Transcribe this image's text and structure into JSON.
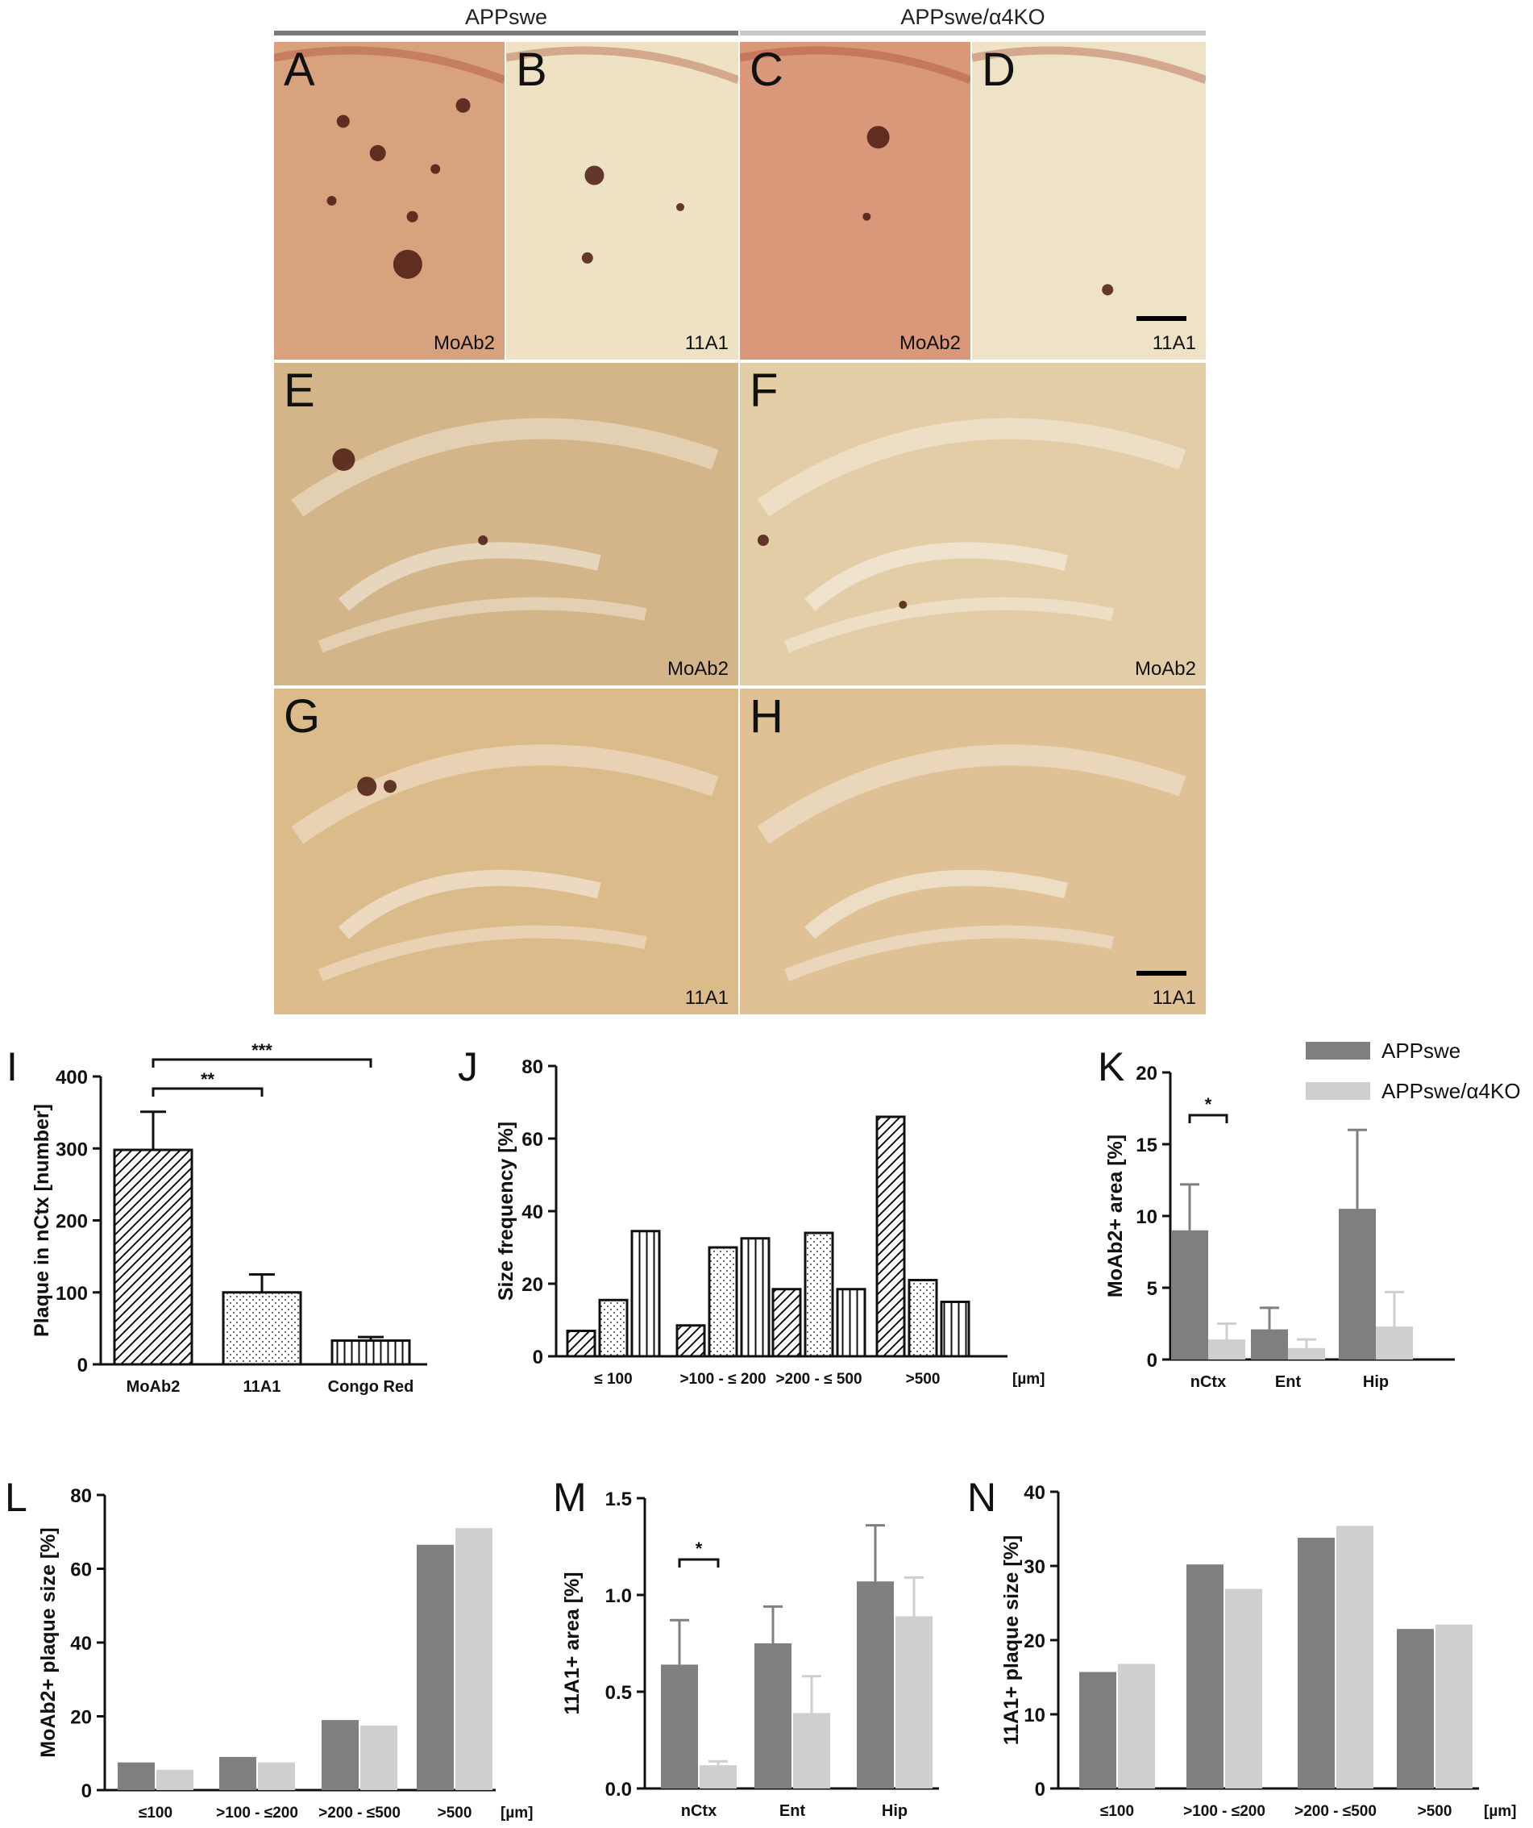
{
  "figure": {
    "groups": [
      {
        "label": "APPswe",
        "color": "#7a7a7a"
      },
      {
        "label": "APPswe/α4KO",
        "color": "#c8c8c8"
      }
    ],
    "panels": [
      {
        "letter": "A",
        "stain": "MoAb2",
        "bg": "#d9a27f"
      },
      {
        "letter": "B",
        "stain": "11A1",
        "bg": "#efe2c4"
      },
      {
        "letter": "C",
        "stain": "MoAb2",
        "bg": "#d9987a"
      },
      {
        "letter": "D",
        "stain": "11A1",
        "bg": "#eee2c7"
      },
      {
        "letter": "E",
        "stain": "MoAb2",
        "bg": "#d4b589"
      },
      {
        "letter": "F",
        "stain": "MoAb2",
        "bg": "#e3cda7"
      },
      {
        "letter": "G",
        "stain": "11A1",
        "bg": "#dcbb8a"
      },
      {
        "letter": "H",
        "stain": "11A1",
        "bg": "#dfc195"
      }
    ]
  },
  "legend": {
    "items": [
      {
        "label": "APPswe",
        "color": "#7f7f7f"
      },
      {
        "label": "APPswe/α4KO",
        "color": "#cfcfcf"
      }
    ]
  },
  "chart_data": [
    {
      "id": "I",
      "letter": "I",
      "type": "bar",
      "ylabel": "Plaque in nCtx [number]",
      "categories": [
        "MoAb2",
        "11A1",
        "Congo Red"
      ],
      "values": [
        298,
        100,
        33
      ],
      "errors": [
        53,
        25,
        5
      ],
      "patterns": [
        "diag",
        "dots",
        "vert"
      ],
      "ylim": [
        0,
        400
      ],
      "yticks": [
        0,
        100,
        200,
        300,
        400
      ],
      "significance": [
        {
          "from": 0,
          "to": 1,
          "label": "**"
        },
        {
          "from": 0,
          "to": 2,
          "label": "***"
        }
      ]
    },
    {
      "id": "J",
      "letter": "J",
      "type": "bar",
      "ylabel": "Size frequency [%]",
      "xunit": "[µm]",
      "categories": [
        "≤ 100",
        ">100 - ≤ 200",
        ">200 - ≤ 500",
        ">500"
      ],
      "series": [
        {
          "pattern": "diag",
          "values": [
            7,
            8.5,
            18.5,
            66
          ]
        },
        {
          "pattern": "dots",
          "values": [
            15.5,
            30,
            34,
            21
          ]
        },
        {
          "pattern": "vert",
          "values": [
            34.5,
            32.5,
            18.5,
            15
          ]
        }
      ],
      "ylim": [
        0,
        80
      ],
      "yticks": [
        0,
        20,
        40,
        60,
        80
      ]
    },
    {
      "id": "K",
      "letter": "K",
      "type": "bar",
      "ylabel": "MoAb2+ area [%]",
      "categories": [
        "nCtx",
        "Ent",
        "Hip"
      ],
      "series": [
        {
          "name": "APPswe",
          "values": [
            9,
            2.1,
            10.5
          ],
          "errors": [
            3.2,
            1.5,
            5.5
          ]
        },
        {
          "name": "APPswe/α4KO",
          "values": [
            1.4,
            0.8,
            2.3
          ],
          "errors": [
            1.1,
            0.6,
            2.4
          ]
        }
      ],
      "ylim": [
        0,
        20
      ],
      "yticks": [
        0,
        5,
        10,
        15,
        20
      ],
      "significance": [
        {
          "category": 0,
          "label": "*"
        }
      ]
    },
    {
      "id": "L",
      "letter": "L",
      "type": "bar",
      "ylabel": "MoAb2+ plaque size [%]",
      "xunit": "[µm]",
      "categories": [
        "≤100",
        ">100 - ≤200",
        ">200 - ≤500",
        ">500"
      ],
      "series": [
        {
          "name": "APPswe",
          "values": [
            7.5,
            9,
            19,
            66.5
          ]
        },
        {
          "name": "APPswe/α4KO",
          "values": [
            5.5,
            7.5,
            17.5,
            71
          ]
        }
      ],
      "ylim": [
        0,
        80
      ],
      "yticks": [
        0,
        20,
        40,
        60,
        80
      ]
    },
    {
      "id": "M",
      "letter": "M",
      "type": "bar",
      "ylabel": "11A1+ area [%]",
      "categories": [
        "nCtx",
        "Ent",
        "Hip"
      ],
      "series": [
        {
          "name": "APPswe",
          "values": [
            0.64,
            0.75,
            1.07
          ],
          "errors": [
            0.23,
            0.19,
            0.29
          ]
        },
        {
          "name": "APPswe/α4KO",
          "values": [
            0.12,
            0.39,
            0.89
          ],
          "errors": [
            0.02,
            0.19,
            0.2
          ]
        }
      ],
      "ylim": [
        0,
        1.5
      ],
      "yticks": [
        0.0,
        0.5,
        1.0,
        1.5
      ],
      "ytick_labels": [
        "0.0",
        "0.5",
        "1.0",
        "1.5"
      ],
      "significance": [
        {
          "category": 0,
          "label": "*"
        }
      ]
    },
    {
      "id": "N",
      "letter": "N",
      "type": "bar",
      "ylabel": "11A1+ plaque size [%]",
      "xunit": "[µm]",
      "categories": [
        "≤100",
        ">100 - ≤200",
        ">200 - ≤500",
        ">500"
      ],
      "series": [
        {
          "name": "APPswe",
          "values": [
            15.7,
            30.2,
            33.8,
            21.5
          ]
        },
        {
          "name": "APPswe/α4KO",
          "values": [
            16.8,
            26.9,
            35.4,
            22.1
          ]
        }
      ],
      "ylim": [
        0,
        40
      ],
      "yticks": [
        0,
        10,
        20,
        30,
        40
      ]
    }
  ]
}
